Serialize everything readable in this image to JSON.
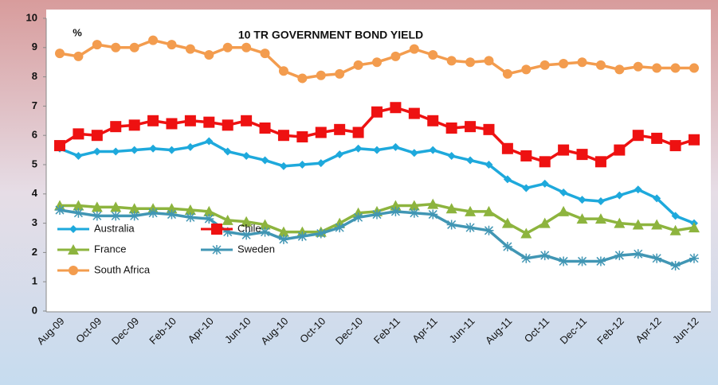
{
  "chart_data": {
    "type": "line",
    "title": "10 TR GOVERNMENT BOND YIELD",
    "y_label": "%",
    "categories": [
      "Aug-09",
      null,
      "Oct-09",
      null,
      "Dec-09",
      null,
      "Feb-10",
      null,
      "Apr-10",
      null,
      "Jun-10",
      null,
      "Aug-10",
      null,
      "Oct-10",
      null,
      "Dec-10",
      null,
      "Feb-11",
      null,
      "Apr-11",
      null,
      "Jun-11",
      null,
      "Aug-11",
      null,
      "Oct-11",
      null,
      "Dec-11",
      null,
      "Feb-12",
      null,
      "Apr-12",
      null,
      "Jun-12"
    ],
    "ylim": [
      0,
      10
    ],
    "yticks": [
      0,
      1,
      2,
      3,
      4,
      5,
      6,
      7,
      8,
      9,
      10
    ],
    "grid": false,
    "legend": "lower left",
    "series": [
      {
        "name": "Australia",
        "color": "#1ea9dc",
        "marker": "diamond",
        "values": [
          5.55,
          5.3,
          5.45,
          5.45,
          5.5,
          5.55,
          5.5,
          5.6,
          5.8,
          5.45,
          5.3,
          5.15,
          4.95,
          5.0,
          5.05,
          5.35,
          5.55,
          5.5,
          5.6,
          5.4,
          5.5,
          5.3,
          5.15,
          5.0,
          4.5,
          4.2,
          4.35,
          4.05,
          3.8,
          3.75,
          3.95,
          4.15,
          3.85,
          3.25,
          3.0
        ]
      },
      {
        "name": "Chile",
        "color": "#ee1111",
        "marker": "square",
        "values": [
          5.65,
          6.05,
          6.0,
          6.3,
          6.35,
          6.5,
          6.4,
          6.5,
          6.45,
          6.35,
          6.5,
          6.25,
          6.0,
          5.95,
          6.1,
          6.2,
          6.1,
          6.8,
          6.95,
          6.75,
          6.5,
          6.25,
          6.3,
          6.2,
          5.55,
          5.3,
          5.1,
          5.5,
          5.35,
          5.1,
          5.5,
          6.0,
          5.9,
          5.65,
          5.85
        ]
      },
      {
        "name": "France",
        "color": "#8db43e",
        "marker": "triangle",
        "values": [
          3.6,
          3.6,
          3.55,
          3.55,
          3.5,
          3.5,
          3.5,
          3.45,
          3.4,
          3.1,
          3.05,
          2.95,
          2.7,
          2.7,
          2.7,
          3.0,
          3.35,
          3.4,
          3.6,
          3.6,
          3.65,
          3.5,
          3.4,
          3.4,
          3.0,
          2.65,
          3.0,
          3.4,
          3.15,
          3.15,
          3.0,
          2.95,
          2.95,
          2.75,
          2.85
        ]
      },
      {
        "name": "Sweden",
        "color": "#4196b4",
        "marker": "star",
        "values": [
          3.45,
          3.35,
          3.25,
          3.25,
          3.25,
          3.35,
          3.3,
          3.2,
          3.15,
          2.7,
          2.6,
          2.7,
          2.45,
          2.55,
          2.65,
          2.85,
          3.2,
          3.3,
          3.4,
          3.35,
          3.3,
          2.95,
          2.85,
          2.75,
          2.2,
          1.8,
          1.9,
          1.7,
          1.7,
          1.7,
          1.9,
          1.95,
          1.8,
          1.55,
          1.8
        ]
      },
      {
        "name": "South Africa",
        "color": "#f39c4e",
        "marker": "circle",
        "values": [
          8.8,
          8.7,
          9.1,
          9.0,
          9.0,
          9.25,
          9.1,
          8.95,
          8.75,
          9.0,
          9.0,
          8.8,
          8.2,
          7.95,
          8.05,
          8.1,
          8.4,
          8.5,
          8.7,
          8.95,
          8.75,
          8.55,
          8.5,
          8.55,
          8.1,
          8.25,
          8.4,
          8.45,
          8.5,
          8.4,
          8.25,
          8.35,
          8.3,
          8.3,
          8.3
        ]
      }
    ]
  }
}
